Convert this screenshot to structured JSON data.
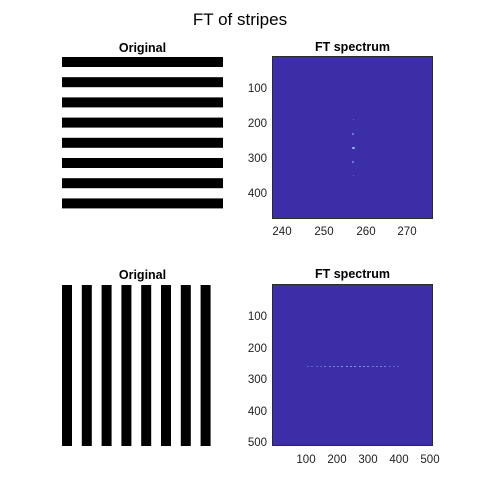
{
  "figure": {
    "title": "FT of stripes"
  },
  "panels": {
    "top_left": {
      "title": "Original",
      "orientation": "horizontal",
      "stripe_count": 8
    },
    "top_right": {
      "title": "FT spectrum",
      "yticks": [
        "100",
        "200",
        "300",
        "400"
      ],
      "xticks": [
        "240",
        "250",
        "260",
        "270"
      ]
    },
    "bottom_left": {
      "title": "Original",
      "orientation": "vertical",
      "stripe_count": 8
    },
    "bottom_right": {
      "title": "FT spectrum",
      "yticks": [
        "100",
        "200",
        "300",
        "400",
        "500"
      ],
      "xticks": [
        "100",
        "200",
        "300",
        "400",
        "500"
      ]
    }
  },
  "colors": {
    "spectrum_background": "#3c2ea6",
    "peak": "#9fb6ff",
    "stripe": "#000000"
  }
}
